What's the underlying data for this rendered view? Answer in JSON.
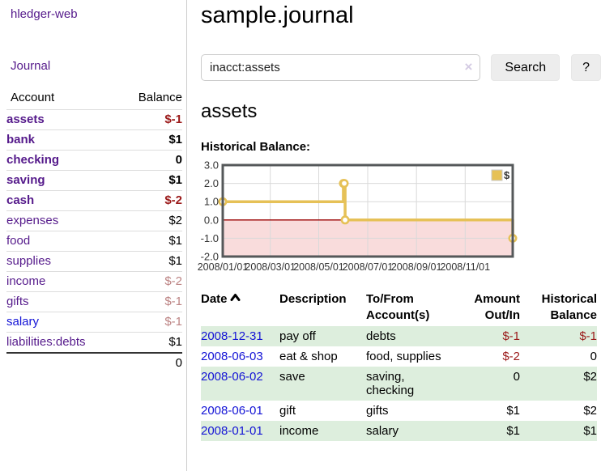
{
  "colors": {
    "purple": "#551a8b",
    "blue": "#1414d6",
    "neg-strong": "#9b1a1a",
    "neg-muted": "#bc8383",
    "stripe": "#ddeedd",
    "btn-bg": "#ededed"
  },
  "sidebar": {
    "app_title": "hledger-web",
    "journal_link": "Journal",
    "accounts": {
      "headers": [
        "Account",
        "Balance"
      ],
      "rows": [
        {
          "account": "assets",
          "balance": "$-1",
          "depth": 1,
          "in_account": true,
          "balance_style": "neg-strong"
        },
        {
          "account": "bank",
          "balance": "$1",
          "depth": 2,
          "in_account": true,
          "balance_style": ""
        },
        {
          "account": "checking",
          "balance": "0",
          "depth": 3,
          "in_account": true,
          "balance_style": ""
        },
        {
          "account": "saving",
          "balance": "$1",
          "depth": 3,
          "in_account": true,
          "balance_style": ""
        },
        {
          "account": "cash",
          "balance": "$-2",
          "depth": 2,
          "in_account": true,
          "balance_style": "neg-strong"
        },
        {
          "account": "expenses",
          "balance": "$2",
          "depth": 1,
          "in_account": false,
          "balance_style": ""
        },
        {
          "account": "food",
          "balance": "$1",
          "depth": 2,
          "in_account": false,
          "balance_style": ""
        },
        {
          "account": "supplies",
          "balance": "$1",
          "depth": 2,
          "in_account": false,
          "balance_style": ""
        },
        {
          "account": "income",
          "balance": "$-2",
          "depth": 1,
          "in_account": false,
          "balance_style": "neg-muted"
        },
        {
          "account": "gifts",
          "balance": "$-1",
          "depth": 2,
          "in_account": false,
          "balance_style": "neg-muted"
        },
        {
          "account": "salary",
          "balance": "$-1",
          "depth": 2,
          "in_account": false,
          "balance_style": "neg-muted",
          "link_style": "unvisited"
        },
        {
          "account": "liabilities:debts",
          "balance": "$1",
          "depth": 1,
          "in_account": false,
          "balance_style": ""
        }
      ],
      "total": "0"
    }
  },
  "main": {
    "title": "sample.journal",
    "search": {
      "value": "inacct:assets",
      "clear_icon": "×",
      "button_label": "Search",
      "help_label": "?"
    },
    "section_title": "assets",
    "register": {
      "headers": [
        "Date",
        "Description",
        "To/From Account(s)",
        "Amount Out/In",
        "Historical Balance"
      ],
      "sort": {
        "column": "Date",
        "direction": "ascending"
      },
      "rows": [
        {
          "date": "2008-12-31",
          "description": "pay off",
          "accounts": "debts",
          "amount": "$-1",
          "amount_negative": true,
          "balance": "$-1",
          "balance_negative": true
        },
        {
          "date": "2008-06-03",
          "description": "eat & shop",
          "accounts": "food, supplies",
          "amount": "$-2",
          "amount_negative": true,
          "balance": "0",
          "balance_negative": false
        },
        {
          "date": "2008-06-02",
          "description": "save",
          "accounts": "saving,\nchecking",
          "amount": "0",
          "amount_negative": false,
          "balance": "$2",
          "balance_negative": false
        },
        {
          "date": "2008-06-01",
          "description": "gift",
          "accounts": "gifts",
          "amount": "$1",
          "amount_negative": false,
          "balance": "$2",
          "balance_negative": false
        },
        {
          "date": "2008-01-01",
          "description": "income",
          "accounts": "salary",
          "amount": "$1",
          "amount_negative": false,
          "balance": "$1",
          "balance_negative": false
        }
      ]
    }
  },
  "chart_data": {
    "type": "line",
    "title": "Historical Balance:",
    "step": "after",
    "series": [
      {
        "name": "$",
        "color": "#e6c157",
        "points": [
          {
            "date": "2008-01-01",
            "x": 0.0,
            "y": 1
          },
          {
            "date": "2008-06-01",
            "x": 0.416,
            "y": 2
          },
          {
            "date": "2008-06-02",
            "x": 0.419,
            "y": 2
          },
          {
            "date": "2008-06-03",
            "x": 0.422,
            "y": 0
          },
          {
            "date": "2008-12-31",
            "x": 1.0,
            "y": -1
          }
        ]
      }
    ],
    "ylim": [
      -2.0,
      3.0
    ],
    "yticks": [
      "3.0",
      "2.0",
      "1.0",
      "0.0",
      "-1.0",
      "-2.0"
    ],
    "xticks": [
      {
        "label": "2008/01/01",
        "x": 0.0
      },
      {
        "label": "2008/03/01",
        "x": 0.164
      },
      {
        "label": "2008/05/01",
        "x": 0.331
      },
      {
        "label": "2008/07/01",
        "x": 0.5
      },
      {
        "label": "2008/09/01",
        "x": 0.668
      },
      {
        "label": "2008/11/01",
        "x": 0.836
      }
    ],
    "grid": true,
    "legend": {
      "position": "top-right",
      "entries": [
        {
          "label": "$",
          "color": "#e6c157"
        }
      ]
    },
    "negative_region_fill": "#f9dcdc",
    "zero_line_color": "#990000",
    "border_color": "#55585a",
    "grid_color": "#d9d9d9"
  }
}
